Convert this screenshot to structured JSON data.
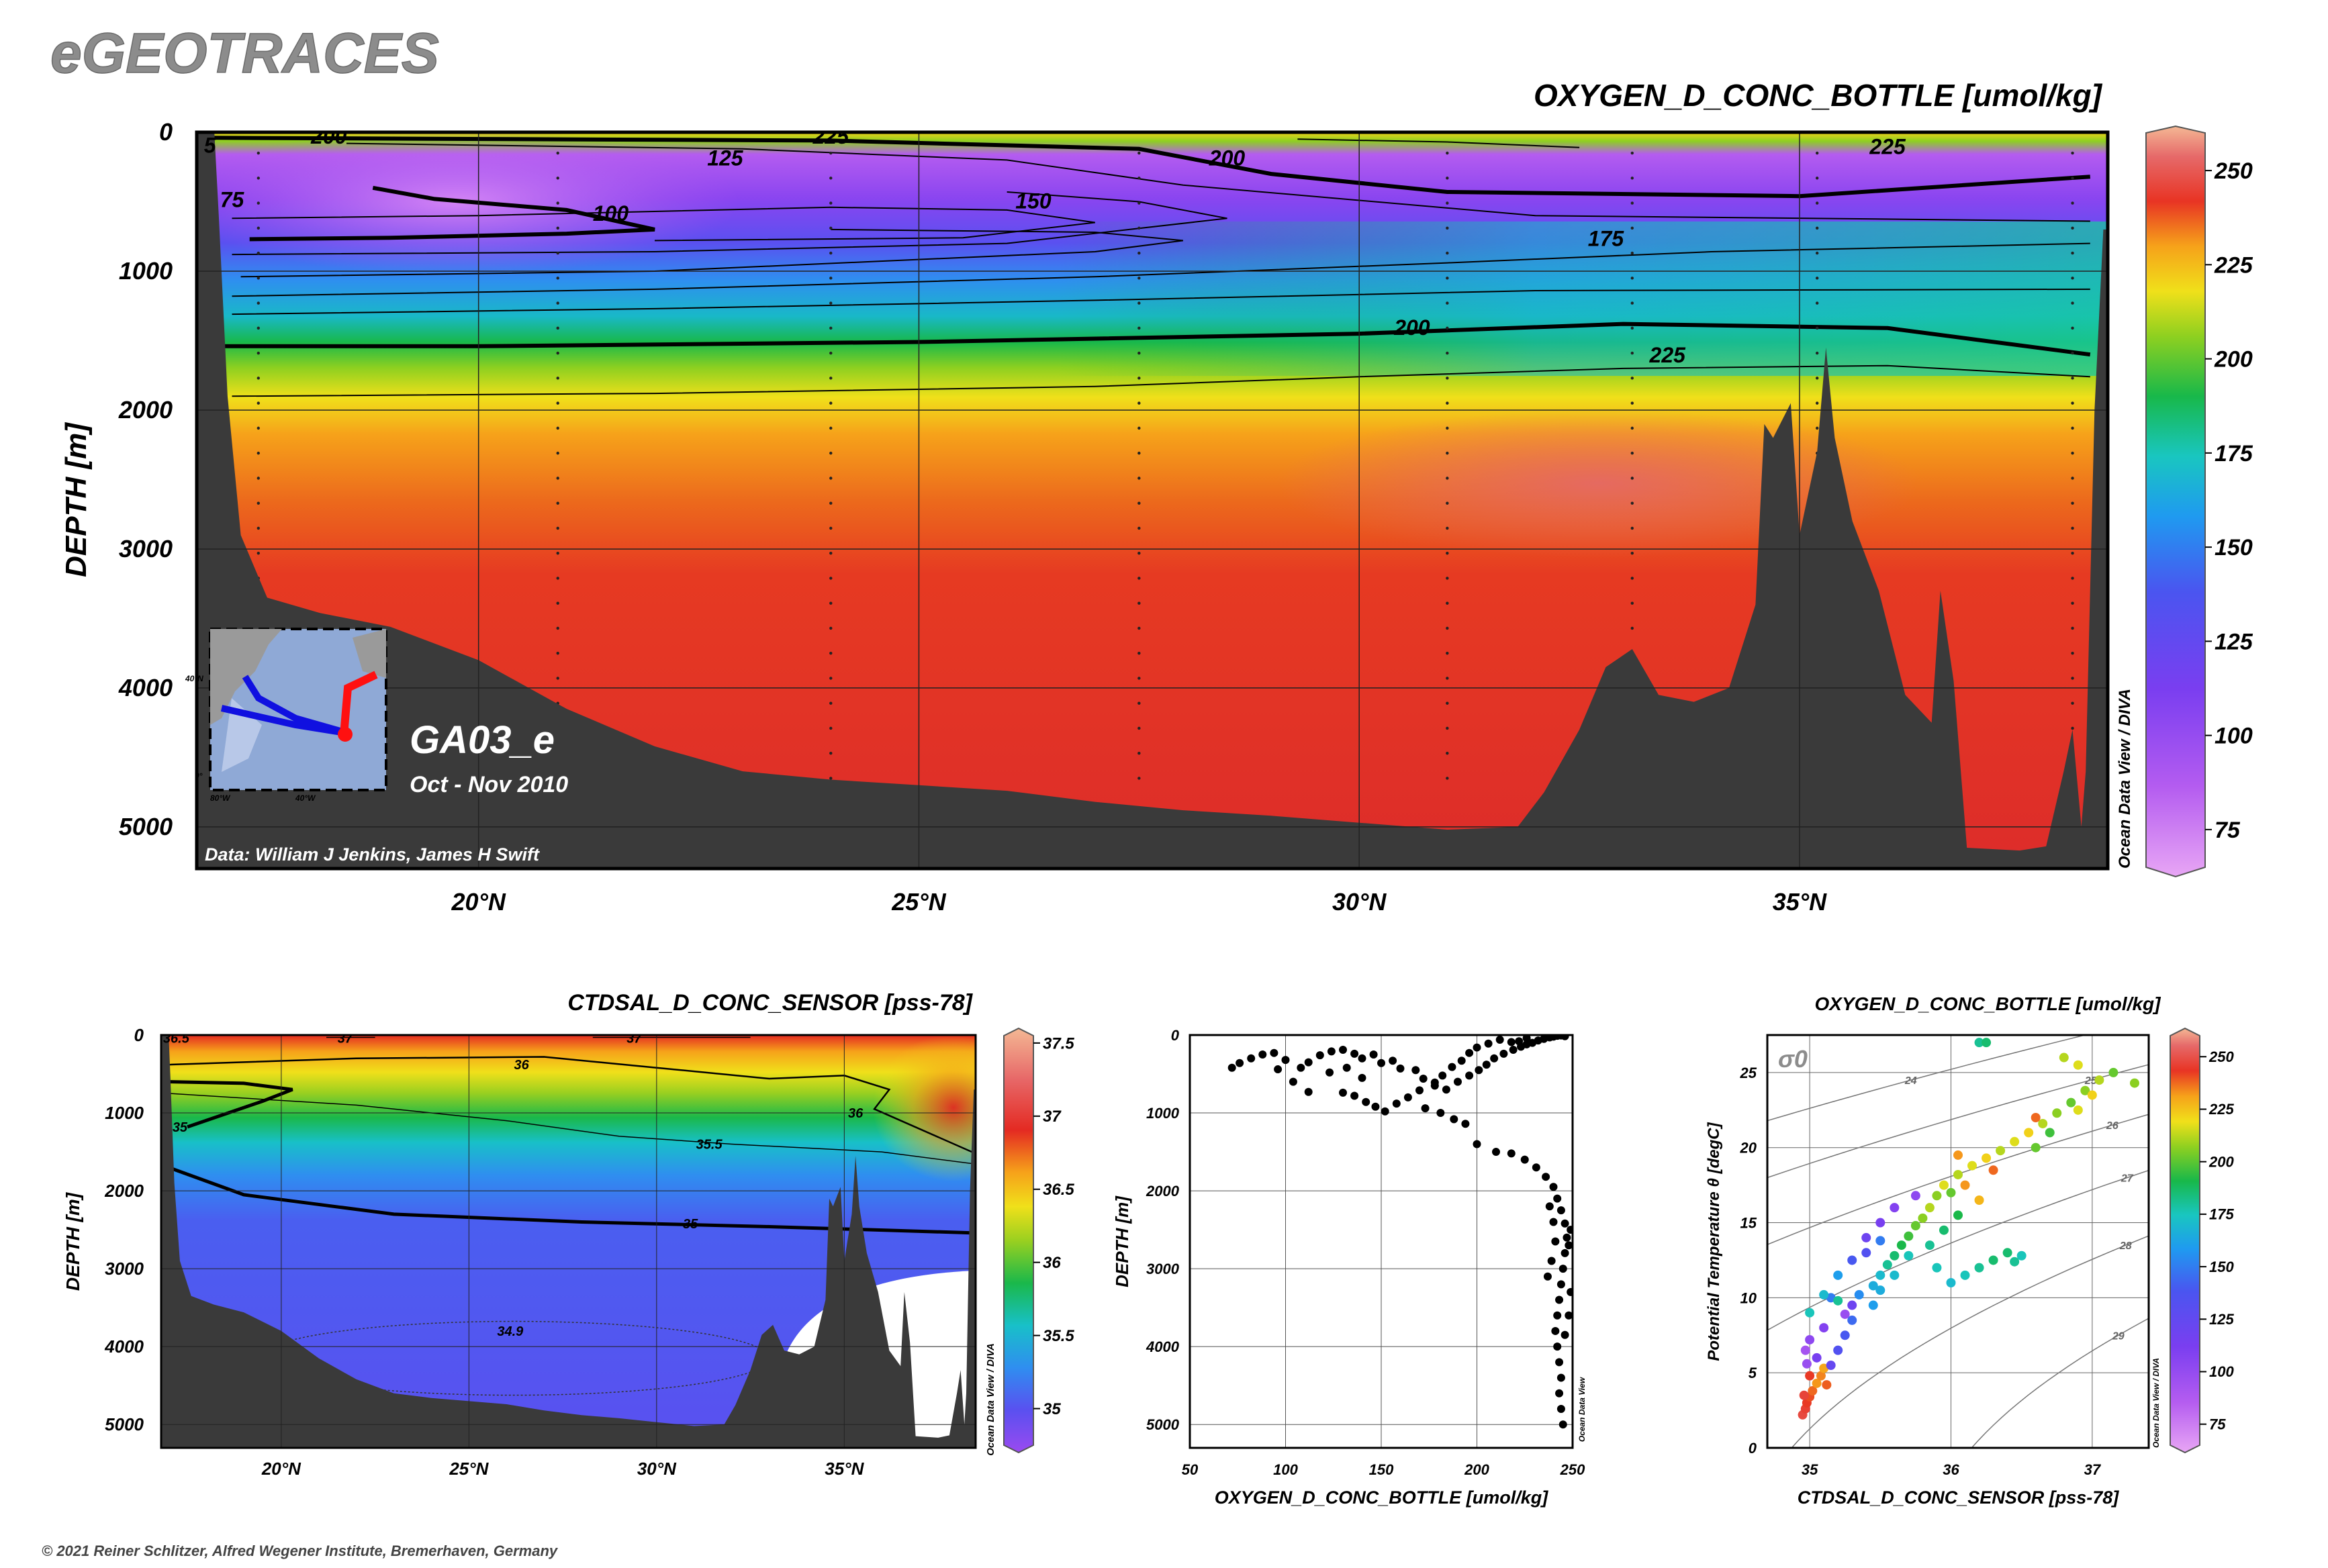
{
  "logo": "eGEOTRACES",
  "copyright": "© 2021 Reiner Schlitzer, Alfred Wegener Institute, Bremerhaven, Germany",
  "odv_credit": "Ocean Data View / DIVA",
  "odv_credit_short": "Ocean Data View",
  "colors": {
    "bathymetry": "#3a3a3a",
    "frame": "#000000"
  },
  "chart_data": [
    {
      "id": "main-section",
      "type": "heatmap",
      "title": "OXYGEN_D_CONC_BOTTLE [umol/kg]",
      "ylabel": "DEPTH [m]",
      "xlim": [
        16.8,
        38.5
      ],
      "ylim": [
        5300,
        0
      ],
      "x_ticks": [
        20,
        25,
        30,
        35
      ],
      "x_tick_labels": [
        "20°N",
        "25°N",
        "30°N",
        "35°N"
      ],
      "y_ticks": [
        0,
        1000,
        2000,
        3000,
        4000,
        5000
      ],
      "y_tick_labels": [
        "0",
        "1000",
        "2000",
        "3000",
        "4000",
        "5000"
      ],
      "colorbar_ticks": [
        75,
        100,
        125,
        150,
        175,
        200,
        225,
        250
      ],
      "colorbar_tick_labels": [
        "75",
        "100",
        "125",
        "150",
        "175",
        "200",
        "225",
        "250"
      ],
      "colorbar_range": [
        65,
        260
      ],
      "contour_labels": [
        {
          "text": "200",
          "x": 28.5,
          "y": 180
        },
        {
          "text": "225",
          "x": 36.0,
          "y": 100
        },
        {
          "text": "225",
          "x": 24.0,
          "y": 25
        },
        {
          "text": "125",
          "x": 22.8,
          "y": 180
        },
        {
          "text": "100",
          "x": 21.5,
          "y": 580
        },
        {
          "text": "150",
          "x": 26.3,
          "y": 490
        },
        {
          "text": "175",
          "x": 32.8,
          "y": 760
        },
        {
          "text": "200",
          "x": 30.6,
          "y": 1400
        },
        {
          "text": "225",
          "x": 33.5,
          "y": 1600
        },
        {
          "text": "75",
          "x": 17.2,
          "y": 480
        },
        {
          "text": "200",
          "x": 18.3,
          "y": 25
        },
        {
          "text": "5",
          "x": 16.95,
          "y": 90
        }
      ],
      "cruise_label": "GA03_e",
      "cruise_dates": "Oct - Nov 2010",
      "data_credit": "Data: William J Jenkins, James H Swift",
      "inset_map": {
        "lat_labels": [
          "40°N",
          "0°"
        ],
        "lon_labels": [
          "80°W",
          "40°W"
        ]
      }
    },
    {
      "id": "salinity-section",
      "type": "heatmap",
      "title": "CTDSAL_D_CONC_SENSOR [pss-78]",
      "ylabel": "DEPTH [m]",
      "xlim": [
        16.8,
        38.5
      ],
      "ylim": [
        5300,
        0
      ],
      "x_ticks": [
        20,
        25,
        30,
        35
      ],
      "x_tick_labels": [
        "20°N",
        "25°N",
        "30°N",
        "35°N"
      ],
      "y_ticks": [
        0,
        1000,
        2000,
        3000,
        4000,
        5000
      ],
      "y_tick_labels": [
        "0",
        "1000",
        "2000",
        "3000",
        "4000",
        "5000"
      ],
      "colorbar_ticks": [
        35,
        35.5,
        36,
        36.5,
        37,
        37.5
      ],
      "colorbar_tick_labels": [
        "35",
        "35.5",
        "36",
        "36.5",
        "37",
        "37.5"
      ],
      "colorbar_range": [
        34.75,
        37.55
      ],
      "contour_labels": [
        {
          "text": "36.5",
          "x": 17.2,
          "y": 40
        },
        {
          "text": "37",
          "x": 21.7,
          "y": 40
        },
        {
          "text": "37",
          "x": 29.4,
          "y": 40
        },
        {
          "text": "36",
          "x": 26.4,
          "y": 380
        },
        {
          "text": "36",
          "x": 35.3,
          "y": 1000
        },
        {
          "text": "35.5",
          "x": 31.4,
          "y": 1400
        },
        {
          "text": "35",
          "x": 17.3,
          "y": 1180
        },
        {
          "text": "35",
          "x": 30.9,
          "y": 2420
        },
        {
          "text": "34.9",
          "x": 26.1,
          "y": 3800
        }
      ]
    },
    {
      "id": "oxygen-profile",
      "type": "scatter",
      "xlabel": "OXYGEN_D_CONC_BOTTLE [umol/kg]",
      "ylabel": "DEPTH [m]",
      "xlim": [
        50,
        250
      ],
      "ylim": [
        5300,
        0
      ],
      "x_ticks": [
        50,
        100,
        150,
        200,
        250
      ],
      "x_tick_labels": [
        "50",
        "100",
        "150",
        "200",
        "250"
      ],
      "y_ticks": [
        0,
        1000,
        2000,
        3000,
        4000,
        5000
      ],
      "y_tick_labels": [
        "0",
        "1000",
        "2000",
        "3000",
        "4000",
        "5000"
      ],
      "points": [
        [
          72,
          420
        ],
        [
          76,
          360
        ],
        [
          82,
          300
        ],
        [
          88,
          250
        ],
        [
          94,
          230
        ],
        [
          100,
          320
        ],
        [
          96,
          440
        ],
        [
          108,
          420
        ],
        [
          112,
          350
        ],
        [
          118,
          260
        ],
        [
          124,
          210
        ],
        [
          130,
          190
        ],
        [
          136,
          240
        ],
        [
          140,
          300
        ],
        [
          146,
          250
        ],
        [
          150,
          360
        ],
        [
          156,
          330
        ],
        [
          160,
          430
        ],
        [
          104,
          600
        ],
        [
          112,
          730
        ],
        [
          123,
          480
        ],
        [
          132,
          420
        ],
        [
          140,
          550
        ],
        [
          168,
          450
        ],
        [
          172,
          560
        ],
        [
          178,
          650
        ],
        [
          184,
          700
        ],
        [
          190,
          600
        ],
        [
          196,
          520
        ],
        [
          201,
          450
        ],
        [
          205,
          380
        ],
        [
          209,
          300
        ],
        [
          214,
          240
        ],
        [
          219,
          190
        ],
        [
          223,
          150
        ],
        [
          226,
          120
        ],
        [
          229,
          100
        ],
        [
          232,
          70
        ],
        [
          235,
          50
        ],
        [
          238,
          30
        ],
        [
          240,
          20
        ],
        [
          242,
          10
        ],
        [
          244,
          5
        ],
        [
          246,
          15
        ],
        [
          212,
          60
        ],
        [
          218,
          90
        ],
        [
          222,
          80
        ],
        [
          226,
          40
        ],
        [
          206,
          110
        ],
        [
          200,
          160
        ],
        [
          196,
          230
        ],
        [
          192,
          330
        ],
        [
          187,
          410
        ],
        [
          182,
          520
        ],
        [
          178,
          610
        ],
        [
          170,
          710
        ],
        [
          164,
          800
        ],
        [
          158,
          880
        ],
        [
          152,
          980
        ],
        [
          147,
          920
        ],
        [
          142,
          860
        ],
        [
          136,
          780
        ],
        [
          130,
          740
        ],
        [
          173,
          940
        ],
        [
          181,
          1000
        ],
        [
          188,
          1080
        ],
        [
          194,
          1140
        ],
        [
          200,
          1400
        ],
        [
          210,
          1500
        ],
        [
          218,
          1520
        ],
        [
          225,
          1600
        ],
        [
          231,
          1700
        ],
        [
          236,
          1820
        ],
        [
          240,
          1950
        ],
        [
          242,
          2100
        ],
        [
          244,
          2250
        ],
        [
          246,
          2420
        ],
        [
          247,
          2600
        ],
        [
          246,
          2800
        ],
        [
          245,
          3000
        ],
        [
          244,
          3200
        ],
        [
          243,
          3400
        ],
        [
          242,
          3600
        ],
        [
          241,
          3800
        ],
        [
          242,
          4000
        ],
        [
          243,
          4200
        ],
        [
          244,
          4400
        ],
        [
          243,
          4600
        ],
        [
          244,
          4800
        ],
        [
          245,
          5000
        ],
        [
          238,
          2200
        ],
        [
          240,
          2400
        ],
        [
          241,
          2650
        ],
        [
          239,
          2900
        ],
        [
          237,
          3100
        ],
        [
          249,
          2500
        ],
        [
          248,
          2700
        ],
        [
          249,
          3300
        ],
        [
          248,
          3600
        ],
        [
          246,
          3850
        ]
      ]
    },
    {
      "id": "ts-diagram",
      "type": "scatter",
      "title": "OXYGEN_D_CONC_BOTTLE [umol/kg]",
      "xlabel": "CTDSAL_D_CONC_SENSOR [pss-78]",
      "ylabel": "Potential Temperature θ [degC]",
      "sigma_label": "σ0",
      "xlim": [
        34.7,
        37.4
      ],
      "ylim": [
        0,
        27.5
      ],
      "x_ticks": [
        35,
        36,
        37
      ],
      "x_tick_labels": [
        "35",
        "36",
        "37"
      ],
      "y_ticks": [
        0,
        5,
        10,
        15,
        20,
        25
      ],
      "y_tick_labels": [
        "0",
        "5",
        "10",
        "15",
        "20",
        "25"
      ],
      "colorbar_ticks": [
        75,
        100,
        125,
        150,
        175,
        200,
        225,
        250
      ],
      "colorbar_tick_labels": [
        "75",
        "100",
        "125",
        "150",
        "175",
        "200",
        "225",
        "250"
      ],
      "colorbar_range": [
        65,
        260
      ],
      "isopycnals": [
        {
          "label": "24",
          "sigma": 24
        },
        {
          "label": "25",
          "sigma": 25
        },
        {
          "label": "26",
          "sigma": 26
        },
        {
          "label": "27",
          "sigma": 27
        },
        {
          "label": "28",
          "sigma": 28
        },
        {
          "label": "29",
          "sigma": 29
        }
      ],
      "points": [
        [
          34.95,
          2.2,
          245
        ],
        [
          34.97,
          2.6,
          243
        ],
        [
          34.98,
          3.0,
          240
        ],
        [
          35.0,
          3.4,
          238
        ],
        [
          35.02,
          3.8,
          235
        ],
        [
          35.05,
          4.3,
          230
        ],
        [
          35.08,
          4.8,
          232
        ],
        [
          35.1,
          5.3,
          228
        ],
        [
          34.98,
          5.6,
          100
        ],
        [
          34.97,
          6.5,
          95
        ],
        [
          35.0,
          7.2,
          105
        ],
        [
          35.1,
          8.0,
          110
        ],
        [
          35.25,
          8.9,
          100
        ],
        [
          35.3,
          9.5,
          120
        ],
        [
          35.15,
          10.0,
          150
        ],
        [
          35.35,
          10.2,
          155
        ],
        [
          35.45,
          10.8,
          165
        ],
        [
          35.5,
          11.5,
          170
        ],
        [
          35.55,
          12.2,
          180
        ],
        [
          35.6,
          12.8,
          185
        ],
        [
          35.65,
          13.5,
          190
        ],
        [
          35.7,
          14.1,
          195
        ],
        [
          35.75,
          14.8,
          200
        ],
        [
          35.8,
          15.3,
          205
        ],
        [
          35.85,
          16.0,
          210
        ],
        [
          35.9,
          16.8,
          205
        ],
        [
          35.95,
          17.5,
          215
        ],
        [
          36.05,
          18.2,
          210
        ],
        [
          36.15,
          18.8,
          215
        ],
        [
          36.25,
          19.3,
          220
        ],
        [
          36.35,
          19.8,
          210
        ],
        [
          36.45,
          20.4,
          215
        ],
        [
          36.55,
          21.0,
          220
        ],
        [
          36.65,
          21.6,
          210
        ],
        [
          36.75,
          22.3,
          205
        ],
        [
          36.85,
          23.0,
          200
        ],
        [
          36.95,
          23.8,
          205
        ],
        [
          37.05,
          24.5,
          210
        ],
        [
          37.15,
          25.0,
          200
        ],
        [
          37.3,
          24.3,
          205
        ],
        [
          36.8,
          26.0,
          210
        ],
        [
          36.9,
          25.5,
          215
        ],
        [
          36.2,
          27.0,
          180
        ],
        [
          36.25,
          27.0,
          185
        ],
        [
          35.4,
          14.0,
          120
        ],
        [
          35.5,
          15.0,
          115
        ],
        [
          35.6,
          16.0,
          110
        ],
        [
          35.75,
          16.8,
          105
        ],
        [
          35.3,
          12.5,
          140
        ],
        [
          35.4,
          13.0,
          135
        ],
        [
          35.5,
          13.8,
          150
        ],
        [
          35.2,
          11.5,
          160
        ],
        [
          35.1,
          10.2,
          170
        ],
        [
          35.0,
          9.0,
          175
        ],
        [
          35.2,
          9.8,
          180
        ],
        [
          35.9,
          12.0,
          175
        ],
        [
          36.0,
          11.0,
          170
        ],
        [
          36.1,
          11.5,
          175
        ],
        [
          36.2,
          12.0,
          180
        ],
        [
          36.3,
          12.5,
          185
        ],
        [
          36.45,
          12.4,
          180
        ],
        [
          36.5,
          12.8,
          175
        ],
        [
          36.4,
          13.0,
          185
        ],
        [
          36.05,
          19.5,
          230
        ],
        [
          36.1,
          17.5,
          230
        ],
        [
          36.3,
          18.5,
          235
        ],
        [
          36.2,
          16.5,
          225
        ],
        [
          36.6,
          20.0,
          200
        ],
        [
          36.7,
          21.0,
          195
        ],
        [
          36.6,
          22.0,
          235
        ],
        [
          36.9,
          22.5,
          215
        ],
        [
          37.0,
          23.5,
          220
        ],
        [
          36.0,
          17.0,
          200
        ],
        [
          36.05,
          15.5,
          190
        ],
        [
          35.95,
          14.5,
          185
        ],
        [
          35.85,
          13.5,
          180
        ],
        [
          35.7,
          12.8,
          175
        ],
        [
          35.6,
          11.5,
          170
        ],
        [
          35.5,
          10.5,
          165
        ],
        [
          35.45,
          9.5,
          160
        ],
        [
          35.3,
          8.5,
          145
        ],
        [
          35.25,
          7.5,
          140
        ],
        [
          35.2,
          6.5,
          135
        ],
        [
          35.15,
          5.5,
          125
        ],
        [
          35.05,
          6.0,
          115
        ],
        [
          35.0,
          4.8,
          240
        ],
        [
          34.96,
          3.5,
          244
        ],
        [
          35.12,
          4.2,
          236
        ]
      ]
    }
  ]
}
